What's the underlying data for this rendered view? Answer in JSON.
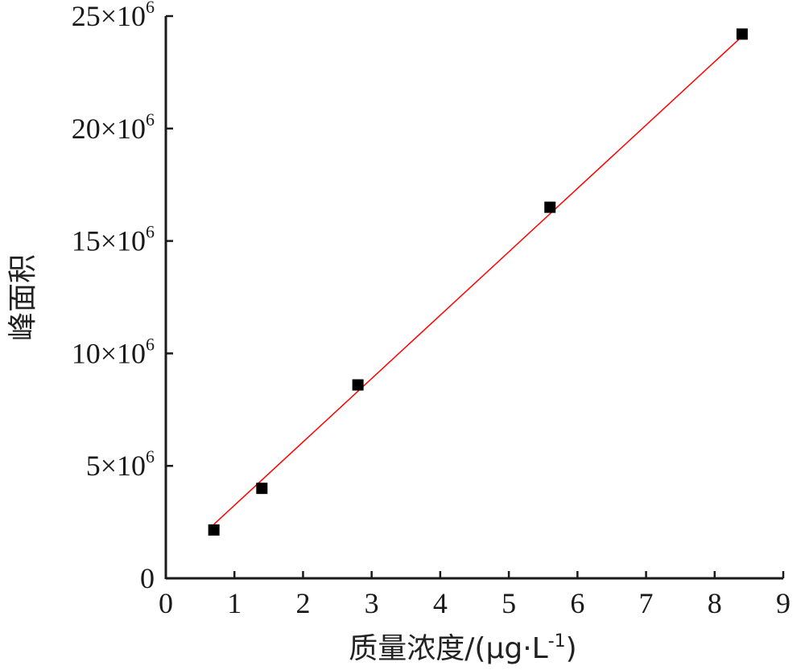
{
  "chart_data": {
    "type": "scatter",
    "xlabel_main": "质量浓度/(μg·L",
    "xlabel_sup": "-1",
    "xlabel_close": ")",
    "ylabel": "峰面积",
    "xlim": [
      0,
      9
    ],
    "ylim": [
      0,
      25000000
    ],
    "x_ticks": [
      "0",
      "1",
      "2",
      "3",
      "4",
      "5",
      "6",
      "7",
      "8",
      "9"
    ],
    "y_ticks": [
      {
        "value": 0,
        "label": "0",
        "exp": ""
      },
      {
        "value": 5000000,
        "label": "5×10",
        "exp": "6"
      },
      {
        "value": 10000000,
        "label": "10×10",
        "exp": "6"
      },
      {
        "value": 15000000,
        "label": "15×10",
        "exp": "6"
      },
      {
        "value": 20000000,
        "label": "20×10",
        "exp": "6"
      },
      {
        "value": 25000000,
        "label": "25×10",
        "exp": "6"
      }
    ],
    "series": [
      {
        "points": [
          {
            "x": 0.7,
            "y": 2150000
          },
          {
            "x": 1.4,
            "y": 4000000
          },
          {
            "x": 2.8,
            "y": 8600000
          },
          {
            "x": 5.6,
            "y": 16500000
          },
          {
            "x": 8.4,
            "y": 24200000
          }
        ],
        "marker_color": "#000000"
      }
    ],
    "fit_line": {
      "x_start": 0.7,
      "y_start": 2400000,
      "x_end": 8.4,
      "y_end": 24100000,
      "color": "#ff0000"
    },
    "grid": false,
    "legend": "none"
  }
}
